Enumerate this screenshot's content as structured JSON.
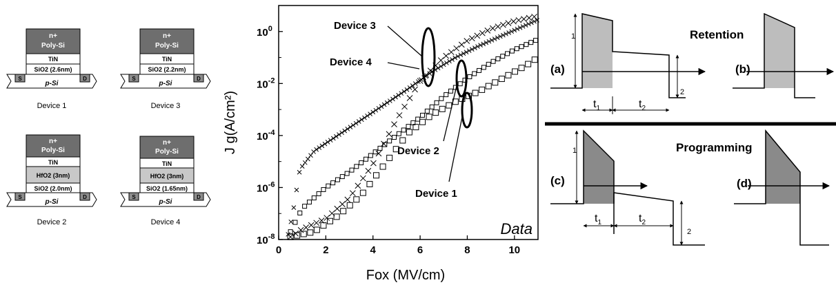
{
  "devices": [
    {
      "id": "d1",
      "name": "Device 1",
      "gate_line1": "n+",
      "gate_line2": "Poly-Si",
      "metal": "TiN",
      "highk": "",
      "oxide": "SiO2 (2.6nm)",
      "source": "S",
      "drain": "D",
      "substrate": "p-Si"
    },
    {
      "id": "d3",
      "name": "Device 3",
      "gate_line1": "n+",
      "gate_line2": "Poly-Si",
      "metal": "TiN",
      "highk": "",
      "oxide": "SiO2 (2.2nm)",
      "source": "S",
      "drain": "D",
      "substrate": "p-Si"
    },
    {
      "id": "d2",
      "name": "Device 2",
      "gate_line1": "n+",
      "gate_line2": "Poly-Si",
      "metal": "TiN",
      "highk": "HfO2 (3nm)",
      "oxide": "SiO2 (2.0nm)",
      "source": "S",
      "drain": "D",
      "substrate": "p-Si"
    },
    {
      "id": "d4",
      "name": "Device 4",
      "gate_line1": "n+",
      "gate_line2": "Poly-Si",
      "metal": "TiN",
      "highk": "HfO2 (3nm)",
      "oxide": "SiO2 (1.65nm)",
      "source": "S",
      "drain": "D",
      "substrate": "p-Si"
    }
  ],
  "chart_data": {
    "type": "scatter",
    "xlabel": "Fox (MV/cm)",
    "ylabel": "J g(A/cm²)",
    "watermark": "Data",
    "xlim": [
      0,
      11
    ],
    "ylim_log10": [
      -8,
      1
    ],
    "y_scale": "log",
    "x_ticks": [
      "0",
      "2",
      "4",
      "6",
      "8",
      "10"
    ],
    "y_tick_labels": [
      {
        "base": "10",
        "exp": "0"
      },
      {
        "base": "10",
        "exp": "-2"
      },
      {
        "base": "10",
        "exp": "-4"
      },
      {
        "base": "10",
        "exp": "-6"
      },
      {
        "base": "10",
        "exp": "-8"
      }
    ],
    "series": [
      {
        "label": "Device 1",
        "marker": "square-large",
        "x": [
          0.5,
          1.5,
          2.5,
          3.5,
          4.5,
          5.5,
          6.5,
          7.5,
          8.5,
          9.5,
          10.5,
          11
        ],
        "log10_y": [
          -7.9,
          -7.7,
          -7.1,
          -6.3,
          -5.1,
          -3.9,
          -3.2,
          -2.7,
          -2.3,
          -1.8,
          -1.3,
          -1.0
        ]
      },
      {
        "label": "Device 2",
        "marker": "square-small",
        "x": [
          0.5,
          1.0,
          2.0,
          3.0,
          4.0,
          5.0,
          6.0,
          7.0,
          8.0,
          9.0,
          10.0,
          11
        ],
        "log10_y": [
          -7.7,
          -6.8,
          -6.0,
          -5.4,
          -4.7,
          -4.0,
          -3.3,
          -2.5,
          -1.8,
          -1.2,
          -0.7,
          -0.3
        ]
      },
      {
        "label": "Device 3",
        "marker": "x-small",
        "x": [
          0.4,
          0.6,
          0.9,
          1.5,
          2.5,
          3.5,
          4.5,
          5.5,
          6.5,
          7.5,
          8.5,
          9.5,
          10.5,
          11
        ],
        "log10_y": [
          -7.8,
          -7.0,
          -5.3,
          -4.6,
          -4.0,
          -3.4,
          -2.8,
          -2.2,
          -1.55,
          -1.0,
          -0.55,
          -0.15,
          0.25,
          0.45
        ]
      },
      {
        "label": "Device 4",
        "marker": "x-large",
        "x": [
          0.5,
          1.0,
          2.0,
          3.0,
          4.0,
          5.0,
          6.0,
          7.0,
          8.0,
          9.0,
          10.0,
          11
        ],
        "log10_y": [
          -7.9,
          -7.6,
          -7.2,
          -6.4,
          -5.1,
          -3.4,
          -1.9,
          -1.0,
          -0.35,
          0.1,
          0.4,
          0.6
        ]
      }
    ],
    "annotations": [
      "Device 3",
      "Device 4",
      "Device 2",
      "Device 1"
    ]
  },
  "waveforms": {
    "retention_title": "Retention",
    "programming_title": "Programming",
    "a": "(a)",
    "b": "(b)",
    "c": "(c)",
    "d": "(d)",
    "label_1": "1",
    "label_2": "2",
    "t1_base": "t",
    "t1_sub": "1",
    "t2_base": "t",
    "t2_sub": "2"
  }
}
